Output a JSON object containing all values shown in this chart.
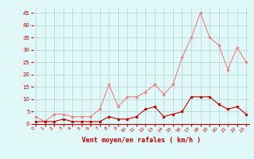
{
  "x": [
    0,
    1,
    2,
    3,
    4,
    5,
    6,
    7,
    8,
    9,
    10,
    11,
    12,
    13,
    14,
    15,
    16,
    17,
    18,
    19,
    20,
    21,
    22,
    23
  ],
  "rafales": [
    3,
    1,
    4,
    4,
    3,
    3,
    3,
    6,
    16,
    7,
    11,
    11,
    13,
    16,
    12,
    16,
    27,
    35,
    45,
    35,
    32,
    22,
    31,
    25
  ],
  "moyen": [
    1,
    1,
    1,
    2,
    1,
    1,
    1,
    1,
    3,
    2,
    2,
    3,
    6,
    7,
    3,
    4,
    5,
    11,
    11,
    11,
    8,
    6,
    7,
    4
  ],
  "color_rafales": "#f08080",
  "color_moyen": "#cc0000",
  "bg_color": "#e0f8f8",
  "grid_color": "#b8d8d8",
  "xlabel": "Vent moyen/en rafales ( km/h )",
  "xlabel_color": "#cc0000",
  "tick_color": "#cc0000",
  "yticks": [
    0,
    5,
    10,
    15,
    20,
    25,
    30,
    35,
    40,
    45
  ],
  "xticks": [
    0,
    1,
    2,
    3,
    4,
    5,
    6,
    7,
    8,
    9,
    10,
    11,
    12,
    13,
    14,
    15,
    16,
    17,
    18,
    19,
    20,
    21,
    22,
    23
  ],
  "ylim": [
    0,
    47
  ],
  "xlim": [
    -0.3,
    23.3
  ]
}
